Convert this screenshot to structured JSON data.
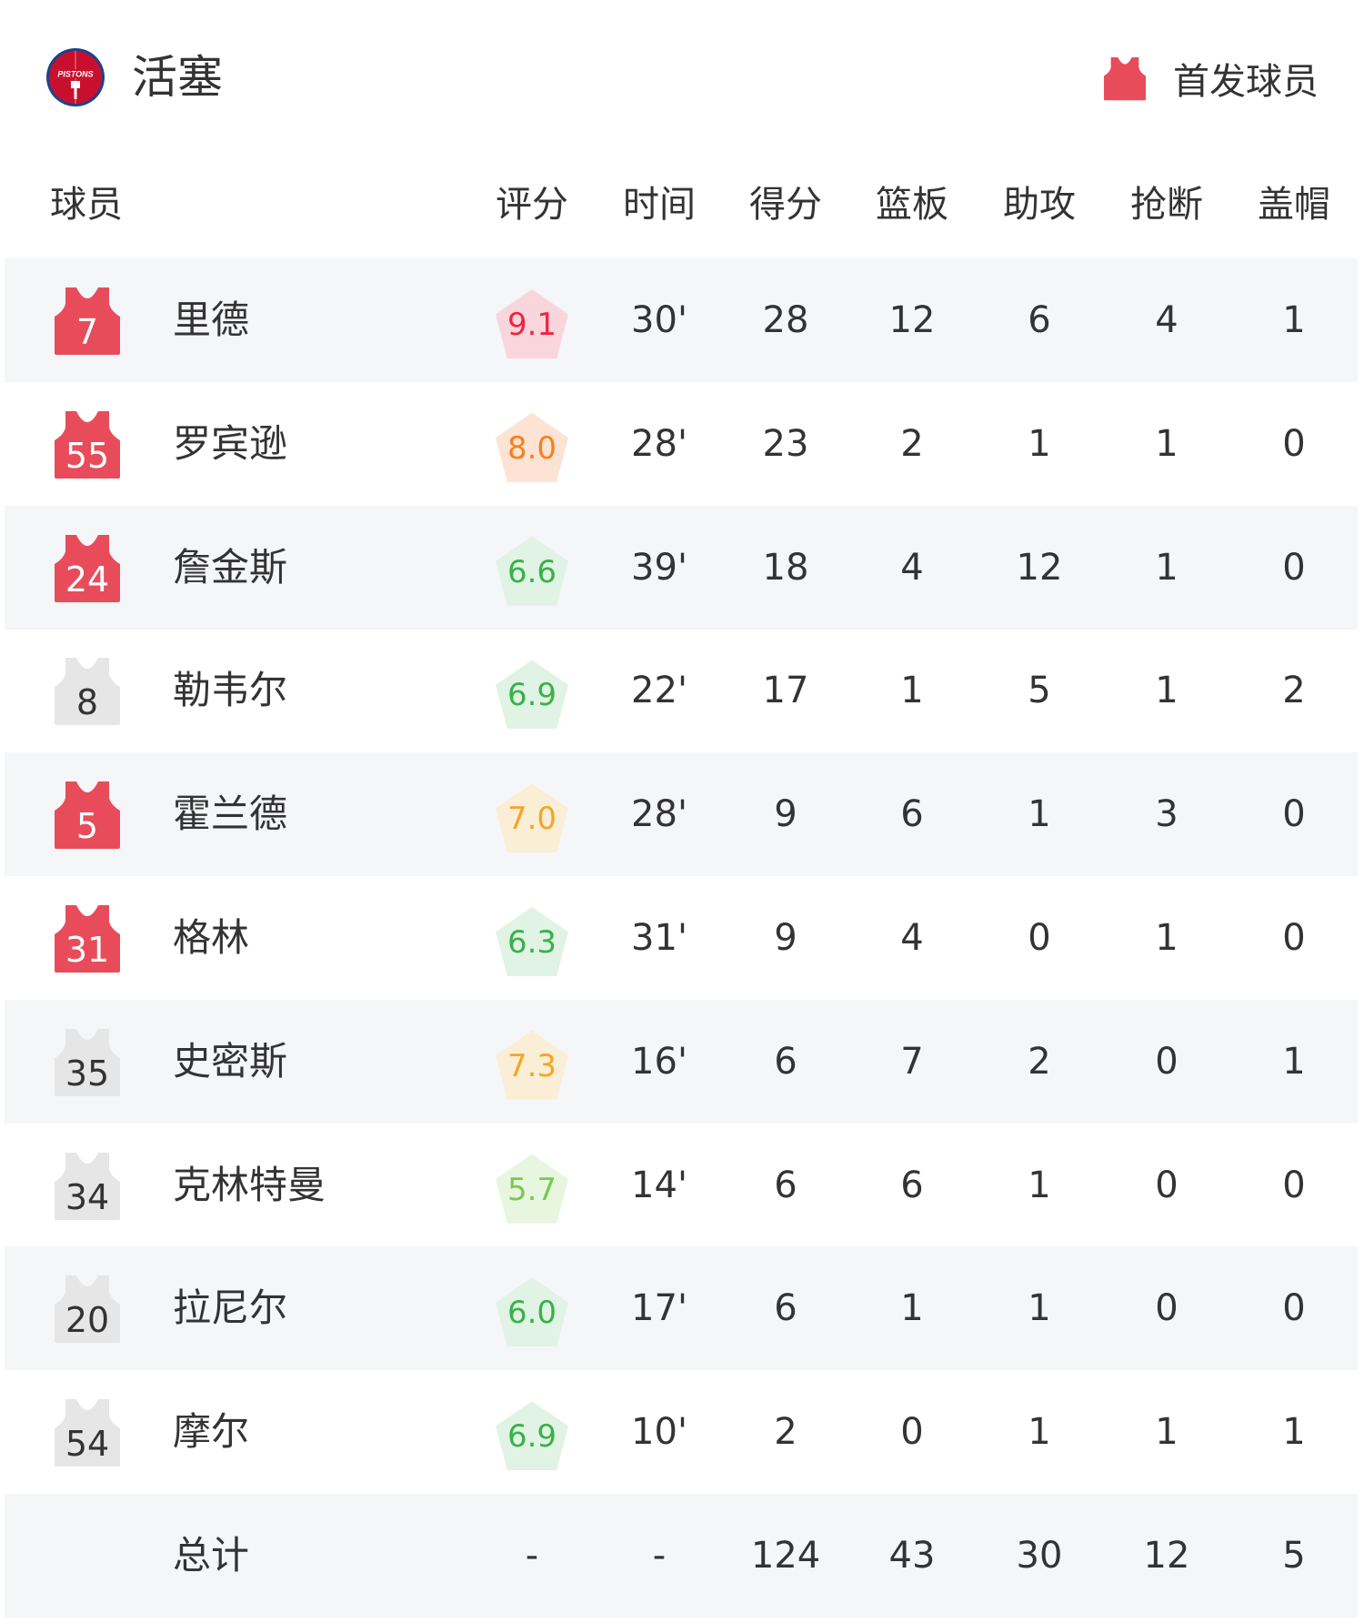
{
  "team": {
    "name": "活塞",
    "logo_text": "PISTONS",
    "logo_colors": {
      "red": "#c8102e",
      "blue": "#1d428a"
    }
  },
  "legend": {
    "label": "首发球员",
    "starter_color": "#e84c5b",
    "bench_color": "#e6e6e6"
  },
  "columns": {
    "player": "球员",
    "rating": "评分",
    "minutes": "时间",
    "points": "得分",
    "rebounds": "篮板",
    "assists": "助攻",
    "steals": "抢断",
    "blocks": "盖帽"
  },
  "rating_colors": {
    "red": {
      "fg": "#f0243f",
      "bg": "#f8d6dc"
    },
    "orange": {
      "fg": "#f7801e",
      "bg": "#fde3d3"
    },
    "yellow": {
      "fg": "#f5a623",
      "bg": "#fbeed6"
    },
    "green": {
      "fg": "#38b249",
      "bg": "#e1f3e4"
    },
    "lightgreen": {
      "fg": "#79c94e",
      "bg": "#e8f6e0"
    }
  },
  "players": [
    {
      "number": "7",
      "name": "里德",
      "starter": true,
      "rating": "9.1",
      "rating_color": "red",
      "minutes": "30'",
      "points": "28",
      "rebounds": "12",
      "assists": "6",
      "steals": "4",
      "blocks": "1"
    },
    {
      "number": "55",
      "name": "罗宾逊",
      "starter": true,
      "rating": "8.0",
      "rating_color": "orange",
      "minutes": "28'",
      "points": "23",
      "rebounds": "2",
      "assists": "1",
      "steals": "1",
      "blocks": "0"
    },
    {
      "number": "24",
      "name": "詹金斯",
      "starter": true,
      "rating": "6.6",
      "rating_color": "green",
      "minutes": "39'",
      "points": "18",
      "rebounds": "4",
      "assists": "12",
      "steals": "1",
      "blocks": "0"
    },
    {
      "number": "8",
      "name": "勒韦尔",
      "starter": false,
      "rating": "6.9",
      "rating_color": "green",
      "minutes": "22'",
      "points": "17",
      "rebounds": "1",
      "assists": "5",
      "steals": "1",
      "blocks": "2"
    },
    {
      "number": "5",
      "name": "霍兰德",
      "starter": true,
      "rating": "7.0",
      "rating_color": "yellow",
      "minutes": "28'",
      "points": "9",
      "rebounds": "6",
      "assists": "1",
      "steals": "3",
      "blocks": "0"
    },
    {
      "number": "31",
      "name": "格林",
      "starter": true,
      "rating": "6.3",
      "rating_color": "green",
      "minutes": "31'",
      "points": "9",
      "rebounds": "4",
      "assists": "0",
      "steals": "1",
      "blocks": "0"
    },
    {
      "number": "35",
      "name": "史密斯",
      "starter": false,
      "rating": "7.3",
      "rating_color": "yellow",
      "minutes": "16'",
      "points": "6",
      "rebounds": "7",
      "assists": "2",
      "steals": "0",
      "blocks": "1"
    },
    {
      "number": "34",
      "name": "克林特曼",
      "starter": false,
      "rating": "5.7",
      "rating_color": "lightgreen",
      "minutes": "14'",
      "points": "6",
      "rebounds": "6",
      "assists": "1",
      "steals": "0",
      "blocks": "0"
    },
    {
      "number": "20",
      "name": "拉尼尔",
      "starter": false,
      "rating": "6.0",
      "rating_color": "green",
      "minutes": "17'",
      "points": "6",
      "rebounds": "1",
      "assists": "1",
      "steals": "0",
      "blocks": "0"
    },
    {
      "number": "54",
      "name": "摩尔",
      "starter": false,
      "rating": "6.9",
      "rating_color": "green",
      "minutes": "10'",
      "points": "2",
      "rebounds": "0",
      "assists": "1",
      "steals": "1",
      "blocks": "1"
    }
  ],
  "totals": {
    "label": "总计",
    "rating": "-",
    "minutes": "-",
    "points": "124",
    "rebounds": "43",
    "assists": "30",
    "steals": "12",
    "blocks": "5"
  }
}
